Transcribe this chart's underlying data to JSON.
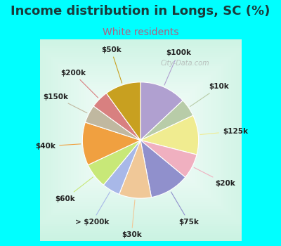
{
  "title": "Income distribution in Longs, SC (%)",
  "subtitle": "White residents",
  "title_color": "#1a3a3a",
  "subtitle_color": "#b06080",
  "bg_color": "#00ffff",
  "chart_bg_colors": [
    "#c8ede0",
    "#e8f8f0",
    "#ffffff",
    "#e8f5f0",
    "#c8e8d8"
  ],
  "watermark": "City-Data.com",
  "labels": [
    "$100k",
    "$10k",
    "$125k",
    "$20k",
    "$75k",
    "$30k",
    "> $200k",
    "$60k",
    "$40k",
    "$150k",
    "$200k",
    "$50k"
  ],
  "values": [
    13,
    5,
    11,
    7,
    11,
    9,
    5,
    7,
    12,
    5,
    5,
    10
  ],
  "colors": [
    "#b0a0d0",
    "#b8cca8",
    "#f0ec90",
    "#f0b0c0",
    "#9090cc",
    "#f0c898",
    "#a8b8e8",
    "#c8e878",
    "#f0a040",
    "#c0b8a0",
    "#d88080",
    "#c8a020"
  ],
  "line_colors": [
    "#b0a0d0",
    "#b8cca8",
    "#f0ec90",
    "#f0b0c0",
    "#9090cc",
    "#f0c898",
    "#a8b8e8",
    "#c8e878",
    "#f0a040",
    "#c0b8a0",
    "#d88080",
    "#c8a020"
  ],
  "label_fontsize": 7.5,
  "title_fontsize": 13,
  "subtitle_fontsize": 10
}
